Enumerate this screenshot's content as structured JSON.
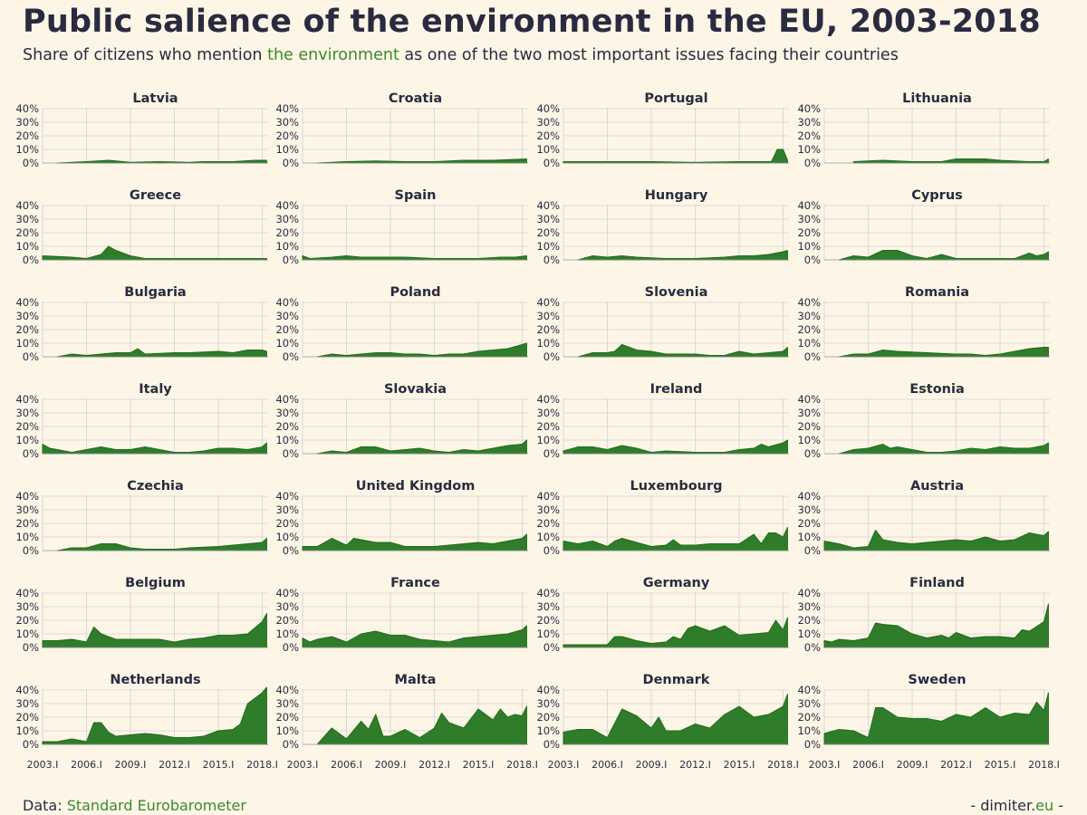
{
  "title": "Public salience of the environment in the EU, 2003-2018",
  "subtitle": {
    "before": "Share of citizens who mention ",
    "highlight": "the environment",
    "after": " as one of the two most important issues facing their countries"
  },
  "footer": {
    "source_label": "Data: ",
    "source_link": "Standard Eurobarometer",
    "brand_prefix": "- dimiter.",
    "brand_tld": "eu",
    "brand_suffix": " -"
  },
  "colors": {
    "background": "#fdf6e6",
    "area_fill": "#2f7d2a",
    "area_line": "#1f6a1c",
    "grid": "#d3cfd6",
    "text": "#2a2a40",
    "accent": "#3a8a2f"
  },
  "chart_data": {
    "type": "area",
    "layout": "small-multiples",
    "x_range": [
      2003.0,
      2018.4
    ],
    "x_ticks": [
      {
        "value": 2003.0,
        "label": "2003.I"
      },
      {
        "value": 2006.0,
        "label": "2006.I"
      },
      {
        "value": 2009.0,
        "label": "2009.I"
      },
      {
        "value": 2012.0,
        "label": "2012.I"
      },
      {
        "value": 2015.0,
        "label": "2015.I"
      },
      {
        "value": 2018.0,
        "label": "2018.I"
      }
    ],
    "y_range": [
      0,
      40
    ],
    "y_ticks": [
      {
        "value": 0,
        "label": "0%"
      },
      {
        "value": 10,
        "label": "10%"
      },
      {
        "value": 20,
        "label": "20%"
      },
      {
        "value": 30,
        "label": "30%"
      },
      {
        "value": 40,
        "label": "40%"
      }
    ],
    "grid": true,
    "panels": [
      {
        "name": "Latvia",
        "x": [
          2004.0,
          2006.0,
          2007.5,
          2009.0,
          2011.0,
          2013.0,
          2014.0,
          2016.0,
          2017.5,
          2018.3
        ],
        "y": [
          0,
          1,
          2,
          0.5,
          1,
          0.5,
          1,
          1,
          2,
          2
        ]
      },
      {
        "name": "Croatia",
        "x": [
          2004.0,
          2006.0,
          2008.0,
          2010.0,
          2012.0,
          2014.0,
          2016.0,
          2018.3
        ],
        "y": [
          0,
          1,
          1.5,
          1,
          1,
          2,
          2,
          3
        ]
      },
      {
        "name": "Portugal",
        "x": [
          2003.0,
          2006.0,
          2009.0,
          2012.0,
          2015.0,
          2016.5,
          2017.2,
          2017.6,
          2018.0,
          2018.3
        ],
        "y": [
          1,
          1,
          1,
          0.5,
          1,
          1,
          1,
          10,
          10,
          2
        ]
      },
      {
        "name": "Lithuania",
        "x": [
          2005.0,
          2007.0,
          2009.0,
          2011.0,
          2012.0,
          2014.0,
          2015.0,
          2017.0,
          2018.0,
          2018.3
        ],
        "y": [
          1,
          2,
          1,
          1,
          3,
          3,
          2,
          1,
          1,
          3
        ]
      },
      {
        "name": "Greece",
        "x": [
          2003.0,
          2005.0,
          2006.0,
          2007.0,
          2007.5,
          2008.0,
          2008.5,
          2009.0,
          2010.0,
          2012.0,
          2015.0,
          2018.3
        ],
        "y": [
          3,
          2,
          1,
          4,
          10,
          7,
          5,
          3,
          1,
          1,
          1,
          1
        ]
      },
      {
        "name": "Spain",
        "x": [
          2003.0,
          2003.5,
          2005.0,
          2006.0,
          2007.0,
          2008.5,
          2010.0,
          2012.0,
          2015.0,
          2016.5,
          2017.5,
          2018.3
        ],
        "y": [
          3,
          1,
          2,
          3,
          2,
          2,
          2,
          1,
          1,
          2,
          2,
          3
        ]
      },
      {
        "name": "Hungary",
        "x": [
          2004.0,
          2005.0,
          2006.0,
          2007.0,
          2008.0,
          2010.0,
          2012.0,
          2014.0,
          2015.0,
          2016.0,
          2017.0,
          2018.0,
          2018.3
        ],
        "y": [
          0,
          3,
          2,
          3,
          2,
          1,
          1,
          2,
          3,
          3,
          4,
          6,
          7
        ]
      },
      {
        "name": "Cyprus",
        "x": [
          2004.0,
          2005.0,
          2006.0,
          2007.0,
          2008.0,
          2009.0,
          2010.0,
          2011.0,
          2012.0,
          2014.0,
          2016.0,
          2017.0,
          2017.5,
          2018.0,
          2018.3
        ],
        "y": [
          0,
          3,
          2,
          7,
          7,
          3,
          1,
          4,
          1,
          1,
          1,
          5,
          3,
          4,
          6
        ]
      },
      {
        "name": "Bulgaria",
        "x": [
          2004.0,
          2005.0,
          2006.0,
          2007.0,
          2008.0,
          2009.0,
          2009.5,
          2010.0,
          2012.0,
          2013.0,
          2015.0,
          2016.0,
          2017.0,
          2018.0,
          2018.3
        ],
        "y": [
          0,
          2,
          1,
          2,
          3,
          3,
          6,
          2,
          3,
          3,
          4,
          3,
          5,
          5,
          4
        ]
      },
      {
        "name": "Poland",
        "x": [
          2004.0,
          2005.0,
          2006.0,
          2007.0,
          2008.0,
          2009.0,
          2010.0,
          2011.0,
          2012.0,
          2013.0,
          2014.0,
          2015.0,
          2016.0,
          2017.0,
          2018.0,
          2018.3
        ],
        "y": [
          0,
          2,
          1,
          2,
          3,
          3,
          2,
          2,
          1,
          2,
          2,
          4,
          5,
          6,
          9,
          10
        ]
      },
      {
        "name": "Slovenia",
        "x": [
          2004.0,
          2005.0,
          2006.0,
          2006.5,
          2007.0,
          2008.0,
          2009.0,
          2010.0,
          2012.0,
          2013.0,
          2014.0,
          2015.0,
          2016.0,
          2017.0,
          2018.0,
          2018.3
        ],
        "y": [
          0,
          3,
          3,
          4,
          9,
          5,
          4,
          2,
          2,
          1,
          1,
          4,
          2,
          3,
          4,
          7
        ]
      },
      {
        "name": "Romania",
        "x": [
          2004.0,
          2005.0,
          2006.0,
          2007.0,
          2008.0,
          2010.0,
          2012.0,
          2013.0,
          2014.0,
          2015.0,
          2016.0,
          2017.0,
          2018.0,
          2018.3
        ],
        "y": [
          0,
          2,
          2,
          5,
          4,
          3,
          2,
          2,
          1,
          2,
          4,
          6,
          7,
          7
        ]
      },
      {
        "name": "Italy",
        "x": [
          2003.0,
          2003.5,
          2004.0,
          2005.0,
          2006.0,
          2007.0,
          2008.0,
          2009.0,
          2010.0,
          2011.0,
          2012.0,
          2013.0,
          2014.0,
          2015.0,
          2016.0,
          2017.0,
          2018.0,
          2018.3
        ],
        "y": [
          7,
          4,
          3,
          1,
          3,
          5,
          3,
          3,
          5,
          3,
          1,
          1,
          2,
          4,
          4,
          3,
          5,
          8
        ]
      },
      {
        "name": "Slovakia",
        "x": [
          2004.0,
          2005.0,
          2006.0,
          2007.0,
          2008.0,
          2009.0,
          2010.0,
          2011.0,
          2012.0,
          2013.0,
          2014.0,
          2015.0,
          2016.0,
          2017.0,
          2018.0,
          2018.3
        ],
        "y": [
          0,
          2,
          1,
          5,
          5,
          2,
          3,
          4,
          2,
          1,
          3,
          2,
          4,
          6,
          7,
          10
        ]
      },
      {
        "name": "Ireland",
        "x": [
          2003.0,
          2004.0,
          2005.0,
          2006.0,
          2007.0,
          2008.0,
          2009.0,
          2010.0,
          2012.0,
          2014.0,
          2015.0,
          2016.0,
          2016.5,
          2017.0,
          2018.0,
          2018.3
        ],
        "y": [
          2,
          5,
          5,
          3,
          6,
          4,
          1,
          2,
          1,
          1,
          3,
          4,
          7,
          5,
          8,
          10
        ]
      },
      {
        "name": "Estonia",
        "x": [
          2004.0,
          2005.0,
          2006.0,
          2007.0,
          2007.5,
          2008.0,
          2009.0,
          2010.0,
          2011.0,
          2012.0,
          2013.0,
          2014.0,
          2015.0,
          2016.0,
          2017.0,
          2018.0,
          2018.3
        ],
        "y": [
          0,
          3,
          4,
          7,
          4,
          5,
          3,
          1,
          1,
          2,
          4,
          3,
          5,
          4,
          4,
          6,
          8
        ]
      },
      {
        "name": "Czechia",
        "x": [
          2004.0,
          2005.0,
          2006.0,
          2007.0,
          2008.0,
          2009.0,
          2010.0,
          2012.0,
          2013.0,
          2015.0,
          2016.0,
          2017.0,
          2018.0,
          2018.3
        ],
        "y": [
          0,
          2,
          2,
          5,
          5,
          2,
          1,
          1,
          2,
          3,
          4,
          5,
          6,
          9
        ]
      },
      {
        "name": "United Kingdom",
        "x": [
          2003.0,
          2004.0,
          2005.0,
          2006.0,
          2006.5,
          2007.0,
          2008.0,
          2009.0,
          2010.0,
          2012.0,
          2013.0,
          2014.0,
          2015.0,
          2016.0,
          2017.0,
          2018.0,
          2018.3
        ],
        "y": [
          3,
          3,
          9,
          4,
          9,
          8,
          6,
          6,
          3,
          3,
          4,
          5,
          6,
          5,
          7,
          9,
          12
        ]
      },
      {
        "name": "Luxembourg",
        "x": [
          2003.0,
          2004.0,
          2005.0,
          2006.0,
          2006.5,
          2007.0,
          2008.0,
          2009.0,
          2010.0,
          2010.5,
          2011.0,
          2012.0,
          2013.0,
          2014.0,
          2015.0,
          2016.0,
          2016.5,
          2017.0,
          2017.5,
          2018.0,
          2018.3
        ],
        "y": [
          7,
          5,
          7,
          3,
          7,
          9,
          6,
          3,
          4,
          8,
          4,
          4,
          5,
          5,
          5,
          12,
          5,
          13,
          13,
          10,
          17
        ]
      },
      {
        "name": "Austria",
        "x": [
          2003.0,
          2004.0,
          2005.0,
          2006.0,
          2006.5,
          2007.0,
          2008.0,
          2009.0,
          2010.0,
          2011.0,
          2012.0,
          2013.0,
          2014.0,
          2015.0,
          2016.0,
          2017.0,
          2018.0,
          2018.3
        ],
        "y": [
          7,
          5,
          2,
          3,
          15,
          8,
          6,
          5,
          6,
          7,
          8,
          7,
          10,
          7,
          8,
          13,
          11,
          14
        ]
      },
      {
        "name": "Belgium",
        "x": [
          2003.0,
          2004.0,
          2005.0,
          2006.0,
          2006.5,
          2007.0,
          2008.0,
          2009.0,
          2010.0,
          2011.0,
          2012.0,
          2013.0,
          2014.0,
          2015.0,
          2016.0,
          2017.0,
          2018.0,
          2018.3
        ],
        "y": [
          5,
          5,
          6,
          4,
          15,
          10,
          6,
          6,
          6,
          6,
          4,
          6,
          7,
          9,
          9,
          10,
          19,
          25
        ]
      },
      {
        "name": "France",
        "x": [
          2003.0,
          2003.5,
          2004.0,
          2005.0,
          2006.0,
          2007.0,
          2008.0,
          2009.0,
          2010.0,
          2011.0,
          2012.0,
          2013.0,
          2014.0,
          2015.0,
          2016.0,
          2017.0,
          2018.0,
          2018.3
        ],
        "y": [
          7,
          4,
          6,
          8,
          4,
          10,
          12,
          9,
          9,
          6,
          5,
          4,
          7,
          8,
          9,
          10,
          13,
          16
        ]
      },
      {
        "name": "Germany",
        "x": [
          2003.0,
          2004.0,
          2005.0,
          2006.0,
          2006.5,
          2007.0,
          2008.0,
          2009.0,
          2010.0,
          2010.5,
          2011.0,
          2011.5,
          2012.0,
          2013.0,
          2014.0,
          2015.0,
          2016.0,
          2017.0,
          2017.5,
          2018.0,
          2018.3
        ],
        "y": [
          2,
          2,
          2,
          2,
          8,
          8,
          5,
          3,
          4,
          8,
          6,
          14,
          16,
          12,
          16,
          9,
          10,
          11,
          20,
          13,
          22
        ]
      },
      {
        "name": "Finland",
        "x": [
          2003.0,
          2003.5,
          2004.0,
          2005.0,
          2006.0,
          2006.5,
          2007.0,
          2008.0,
          2009.0,
          2010.0,
          2011.0,
          2011.5,
          2012.0,
          2013.0,
          2014.0,
          2015.0,
          2016.0,
          2016.5,
          2017.0,
          2018.0,
          2018.3
        ],
        "y": [
          5,
          4,
          6,
          5,
          7,
          18,
          17,
          16,
          10,
          7,
          9,
          7,
          11,
          7,
          8,
          8,
          7,
          13,
          12,
          19,
          32
        ]
      },
      {
        "name": "Netherlands",
        "x": [
          2003.0,
          2004.0,
          2005.0,
          2006.0,
          2006.5,
          2007.0,
          2007.5,
          2008.0,
          2009.0,
          2010.0,
          2011.0,
          2012.0,
          2013.0,
          2014.0,
          2015.0,
          2016.0,
          2016.5,
          2017.0,
          2018.0,
          2018.3
        ],
        "y": [
          2,
          2,
          4,
          2,
          16,
          16,
          9,
          6,
          7,
          8,
          7,
          5,
          5,
          6,
          10,
          11,
          15,
          30,
          38,
          42
        ]
      },
      {
        "name": "Malta",
        "x": [
          2004.0,
          2005.0,
          2006.0,
          2007.0,
          2007.5,
          2008.0,
          2008.5,
          2009.0,
          2010.0,
          2011.0,
          2012.0,
          2012.5,
          2013.0,
          2014.0,
          2015.0,
          2016.0,
          2016.5,
          2017.0,
          2017.5,
          2018.0,
          2018.3
        ],
        "y": [
          0,
          12,
          4,
          17,
          11,
          22,
          6,
          6,
          11,
          5,
          12,
          23,
          16,
          12,
          26,
          18,
          26,
          20,
          22,
          21,
          28
        ]
      },
      {
        "name": "Denmark",
        "x": [
          2003.0,
          2004.0,
          2005.0,
          2006.0,
          2007.0,
          2008.0,
          2009.0,
          2009.5,
          2010.0,
          2011.0,
          2012.0,
          2013.0,
          2014.0,
          2015.0,
          2016.0,
          2017.0,
          2018.0,
          2018.3
        ],
        "y": [
          9,
          11,
          11,
          5,
          26,
          21,
          12,
          20,
          10,
          10,
          15,
          12,
          22,
          28,
          20,
          22,
          28,
          37
        ]
      },
      {
        "name": "Sweden",
        "x": [
          2003.0,
          2004.0,
          2005.0,
          2006.0,
          2006.5,
          2007.0,
          2008.0,
          2009.0,
          2010.0,
          2011.0,
          2012.0,
          2013.0,
          2014.0,
          2015.0,
          2016.0,
          2017.0,
          2017.5,
          2018.0,
          2018.3
        ],
        "y": [
          8,
          11,
          10,
          5,
          27,
          27,
          20,
          19,
          19,
          17,
          22,
          20,
          27,
          20,
          23,
          22,
          31,
          25,
          38
        ]
      }
    ]
  }
}
